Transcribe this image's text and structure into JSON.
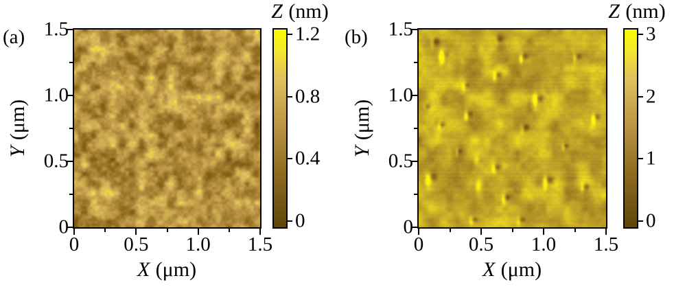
{
  "figure": {
    "background": "#ffffff",
    "axis_color": "#000000"
  },
  "chart_data": [
    {
      "type": "heatmap",
      "panel_label": "(a)",
      "xlabel": "X (μm)",
      "xlabel_var": "X",
      "xlabel_unit": "(μm)",
      "ylabel": "Y (μm)",
      "ylabel_var": "Y",
      "ylabel_unit": "(μm)",
      "xlim": [
        0,
        1.5
      ],
      "ylim": [
        0,
        1.5
      ],
      "xtick_values": [
        0,
        0.5,
        1.0,
        1.5
      ],
      "xtick_labels": [
        "0",
        "0.5",
        "1.0",
        "1.5"
      ],
      "xminor_values": [
        0.25,
        0.75,
        1.25
      ],
      "ytick_values": [
        0,
        0.5,
        1.0,
        1.5
      ],
      "ytick_labels": [
        "0",
        "0.5",
        "1.0",
        "1.5"
      ],
      "yminor_values": [
        0.25,
        0.75,
        1.25
      ],
      "colorbar": {
        "label": "Z (nm)",
        "label_var": "Z",
        "label_unit": "(nm)",
        "min": 0,
        "max": 1.2,
        "tick_values": [
          0,
          0.4,
          0.8,
          1.2
        ],
        "tick_labels": [
          "0",
          "0.4",
          "0.8",
          "1.2"
        ],
        "gradient_stops": [
          [
            0,
            "#5f460d"
          ],
          [
            0.25,
            "#8a671c"
          ],
          [
            0.5,
            "#b89243"
          ],
          [
            0.75,
            "#e0c05c"
          ],
          [
            0.9,
            "#f5e92b"
          ],
          [
            1,
            "#fdf903"
          ]
        ]
      },
      "surface": {
        "style": "fine granular gold topography, uniform mottle, no defects",
        "seed": 1234,
        "octaves": [
          [
            14,
            1
          ],
          [
            7,
            0.55
          ],
          [
            3.5,
            0.3
          ]
        ],
        "contrast": 1.8,
        "v_base": 0.24,
        "v_range": 0.52,
        "scanline": 0.0,
        "image_stops": [
          [
            0,
            "#5f460d"
          ],
          [
            0.25,
            "#8a671c"
          ],
          [
            0.5,
            "#b89243"
          ],
          [
            0.75,
            "#e0c05c"
          ],
          [
            0.9,
            "#f5e92b"
          ],
          [
            1,
            "#fdf903"
          ]
        ],
        "pits": []
      }
    },
    {
      "type": "heatmap",
      "panel_label": "(b)",
      "xlabel": "X (μm)",
      "xlabel_var": "X",
      "xlabel_unit": "(μm)",
      "ylabel": "Y (μm)",
      "ylabel_var": "Y",
      "ylabel_unit": "(μm)",
      "xlim": [
        0,
        1.5
      ],
      "ylim": [
        0,
        1.5
      ],
      "xtick_values": [
        0,
        0.5,
        1.0,
        1.5
      ],
      "xtick_labels": [
        "0",
        "0.5",
        "1.0",
        "1.5"
      ],
      "xminor_values": [
        0.25,
        0.75,
        1.25
      ],
      "ytick_values": [
        0,
        0.5,
        1.0,
        1.5
      ],
      "ytick_labels": [
        "0",
        "0.5",
        "1.0",
        "1.5"
      ],
      "yminor_values": [
        0.25,
        0.75,
        1.25
      ],
      "colorbar": {
        "label": "Z (nm)",
        "label_var": "Z",
        "label_unit": "(nm)",
        "min": 0,
        "max": 3,
        "tick_values": [
          0,
          1,
          2,
          3
        ],
        "tick_labels": [
          "0",
          "1",
          "2",
          "3"
        ],
        "gradient_stops": [
          [
            0,
            "#5f460d"
          ],
          [
            0.25,
            "#8a671c"
          ],
          [
            0.5,
            "#b89243"
          ],
          [
            0.75,
            "#e0c05c"
          ],
          [
            0.9,
            "#f5e92b"
          ],
          [
            1,
            "#fdf903"
          ]
        ]
      },
      "surface": {
        "style": "smoother yellow-gold topography with scattered dark pits, each with a bright comet-like highlight on its lower-left, faint horizontal scan lines",
        "seed": 777,
        "octaves": [
          [
            20,
            1
          ],
          [
            9,
            0.45
          ],
          [
            4,
            0.2
          ]
        ],
        "contrast": 1.5,
        "v_base": 0.45,
        "v_range": 0.42,
        "scanline": 0.025,
        "image_stops": [
          [
            0,
            "#5f460d"
          ],
          [
            0.3,
            "#8a671c"
          ],
          [
            0.5,
            "#a98a24"
          ],
          [
            0.68,
            "#c6ab28"
          ],
          [
            0.82,
            "#ddc824"
          ],
          [
            0.92,
            "#efe31c"
          ],
          [
            1,
            "#fbf30a"
          ]
        ],
        "pits": [
          {
            "x": 0.14,
            "y": 1.41,
            "r": 5,
            "dark": 0.38,
            "bright": 0.3
          },
          {
            "x": 0.22,
            "y": 1.31,
            "r": 6,
            "dark": 0.3,
            "bright": 0.62
          },
          {
            "x": 0.65,
            "y": 1.43,
            "r": 5,
            "dark": 0.4,
            "bright": 0.18
          },
          {
            "x": 0.85,
            "y": 1.3,
            "r": 5,
            "dark": 0.35,
            "bright": 0.45
          },
          {
            "x": 1.28,
            "y": 1.3,
            "r": 5,
            "dark": 0.38,
            "bright": 0.4
          },
          {
            "x": 0.64,
            "y": 1.16,
            "r": 5,
            "dark": 0.42,
            "bright": 0.35
          },
          {
            "x": 0.39,
            "y": 1.08,
            "r": 5,
            "dark": 0.38,
            "bright": 0.25
          },
          {
            "x": 0.97,
            "y": 0.98,
            "r": 6,
            "dark": 0.48,
            "bright": 0.55
          },
          {
            "x": 0.07,
            "y": 0.92,
            "r": 4,
            "dark": 0.35,
            "bright": 0.15
          },
          {
            "x": 0.41,
            "y": 0.86,
            "r": 5,
            "dark": 0.35,
            "bright": 0.45
          },
          {
            "x": 1.43,
            "y": 0.84,
            "r": 5,
            "dark": 0.35,
            "bright": 0.45
          },
          {
            "x": 0.19,
            "y": 0.78,
            "r": 4,
            "dark": 0.35,
            "bright": 0.2
          },
          {
            "x": 0.86,
            "y": 0.76,
            "r": 5,
            "dark": 0.4,
            "bright": 0.25
          },
          {
            "x": 1.18,
            "y": 0.62,
            "r": 4,
            "dark": 0.3,
            "bright": 0.25
          },
          {
            "x": 0.33,
            "y": 0.58,
            "r": 4,
            "dark": 0.3,
            "bright": 0.3
          },
          {
            "x": 0.63,
            "y": 0.46,
            "r": 5,
            "dark": 0.4,
            "bright": 0.3
          },
          {
            "x": 0.12,
            "y": 0.38,
            "r": 7,
            "dark": 0.5,
            "bright": 0.5
          },
          {
            "x": 1.05,
            "y": 0.36,
            "r": 6,
            "dark": 0.45,
            "bright": 0.55
          },
          {
            "x": 1.34,
            "y": 0.31,
            "r": 5,
            "dark": 0.4,
            "bright": 0.3
          },
          {
            "x": 0.71,
            "y": 0.23,
            "r": 5,
            "dark": 0.4,
            "bright": 0.3
          },
          {
            "x": 0.45,
            "y": 0.06,
            "r": 5,
            "dark": 0.38,
            "bright": 0.25
          },
          {
            "x": 0.83,
            "y": 0.06,
            "r": 5,
            "dark": 0.38,
            "bright": 0.25
          },
          {
            "x": 0.52,
            "y": 0.33,
            "r": 7,
            "dark": 0.0,
            "bright": 0.35
          },
          {
            "x": 0.5,
            "y": 0.52,
            "r": 6,
            "dark": 0.0,
            "bright": 0.3
          }
        ]
      }
    }
  ]
}
